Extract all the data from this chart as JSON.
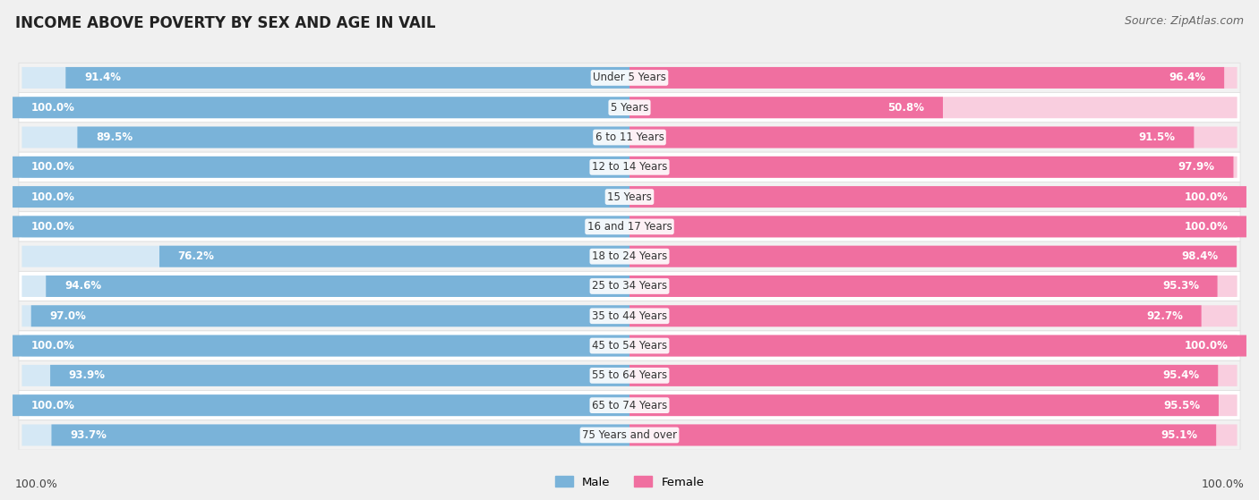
{
  "title": "INCOME ABOVE POVERTY BY SEX AND AGE IN VAIL",
  "source": "Source: ZipAtlas.com",
  "categories": [
    "Under 5 Years",
    "5 Years",
    "6 to 11 Years",
    "12 to 14 Years",
    "15 Years",
    "16 and 17 Years",
    "18 to 24 Years",
    "25 to 34 Years",
    "35 to 44 Years",
    "45 to 54 Years",
    "55 to 64 Years",
    "65 to 74 Years",
    "75 Years and over"
  ],
  "male_values": [
    91.4,
    100.0,
    89.5,
    100.0,
    100.0,
    100.0,
    76.2,
    94.6,
    97.0,
    100.0,
    93.9,
    100.0,
    93.7
  ],
  "female_values": [
    96.4,
    50.8,
    91.5,
    97.9,
    100.0,
    100.0,
    98.4,
    95.3,
    92.7,
    100.0,
    95.4,
    95.5,
    95.1
  ],
  "male_color": "#7ab3d9",
  "male_light_color": "#d5e8f5",
  "female_color": "#f06fa0",
  "female_light_color": "#f9cedf",
  "row_colors": [
    "#f2f2f2",
    "#ffffff"
  ],
  "row_outline": "#dddddd",
  "bg_color": "#f0f0f0",
  "text_color": "#ffffff",
  "cat_color": "#333333",
  "legend_male": "Male",
  "legend_female": "Female",
  "footer_value": "100.0%",
  "title_fontsize": 12,
  "bar_fontsize": 8.5,
  "cat_fontsize": 8.5,
  "source_fontsize": 9
}
